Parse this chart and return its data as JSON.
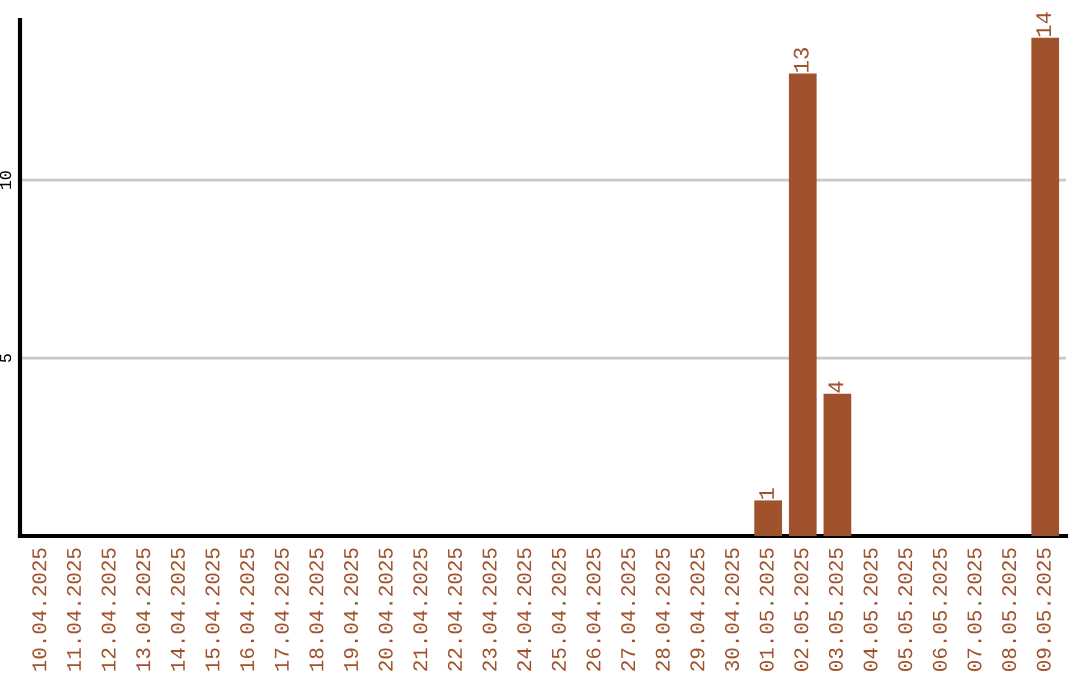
{
  "chart_data": {
    "type": "bar",
    "categories": [
      "10.04.2025",
      "11.04.2025",
      "12.04.2025",
      "13.04.2025",
      "14.04.2025",
      "15.04.2025",
      "16.04.2025",
      "17.04.2025",
      "18.04.2025",
      "19.04.2025",
      "20.04.2025",
      "21.04.2025",
      "22.04.2025",
      "23.04.2025",
      "24.04.2025",
      "25.04.2025",
      "26.04.2025",
      "27.04.2025",
      "28.04.2025",
      "29.04.2025",
      "30.04.2025",
      "01.05.2025",
      "02.05.2025",
      "03.05.2025",
      "04.05.2025",
      "05.05.2025",
      "06.05.2025",
      "07.05.2025",
      "08.05.2025",
      "09.05.2025"
    ],
    "values": [
      0,
      0,
      0,
      0,
      0,
      0,
      0,
      0,
      0,
      0,
      0,
      0,
      0,
      0,
      0,
      0,
      0,
      0,
      0,
      0,
      0,
      1,
      13,
      4,
      0,
      0,
      0,
      0,
      0,
      14
    ],
    "value_labels": [
      null,
      null,
      null,
      null,
      null,
      null,
      null,
      null,
      null,
      null,
      null,
      null,
      null,
      null,
      null,
      null,
      null,
      null,
      null,
      null,
      null,
      "1",
      "13",
      "4",
      null,
      null,
      null,
      null,
      null,
      "14"
    ],
    "color": "#a0522d",
    "ylim": [
      0,
      14.5
    ],
    "yticks": [
      5,
      10
    ],
    "grid": "y"
  }
}
